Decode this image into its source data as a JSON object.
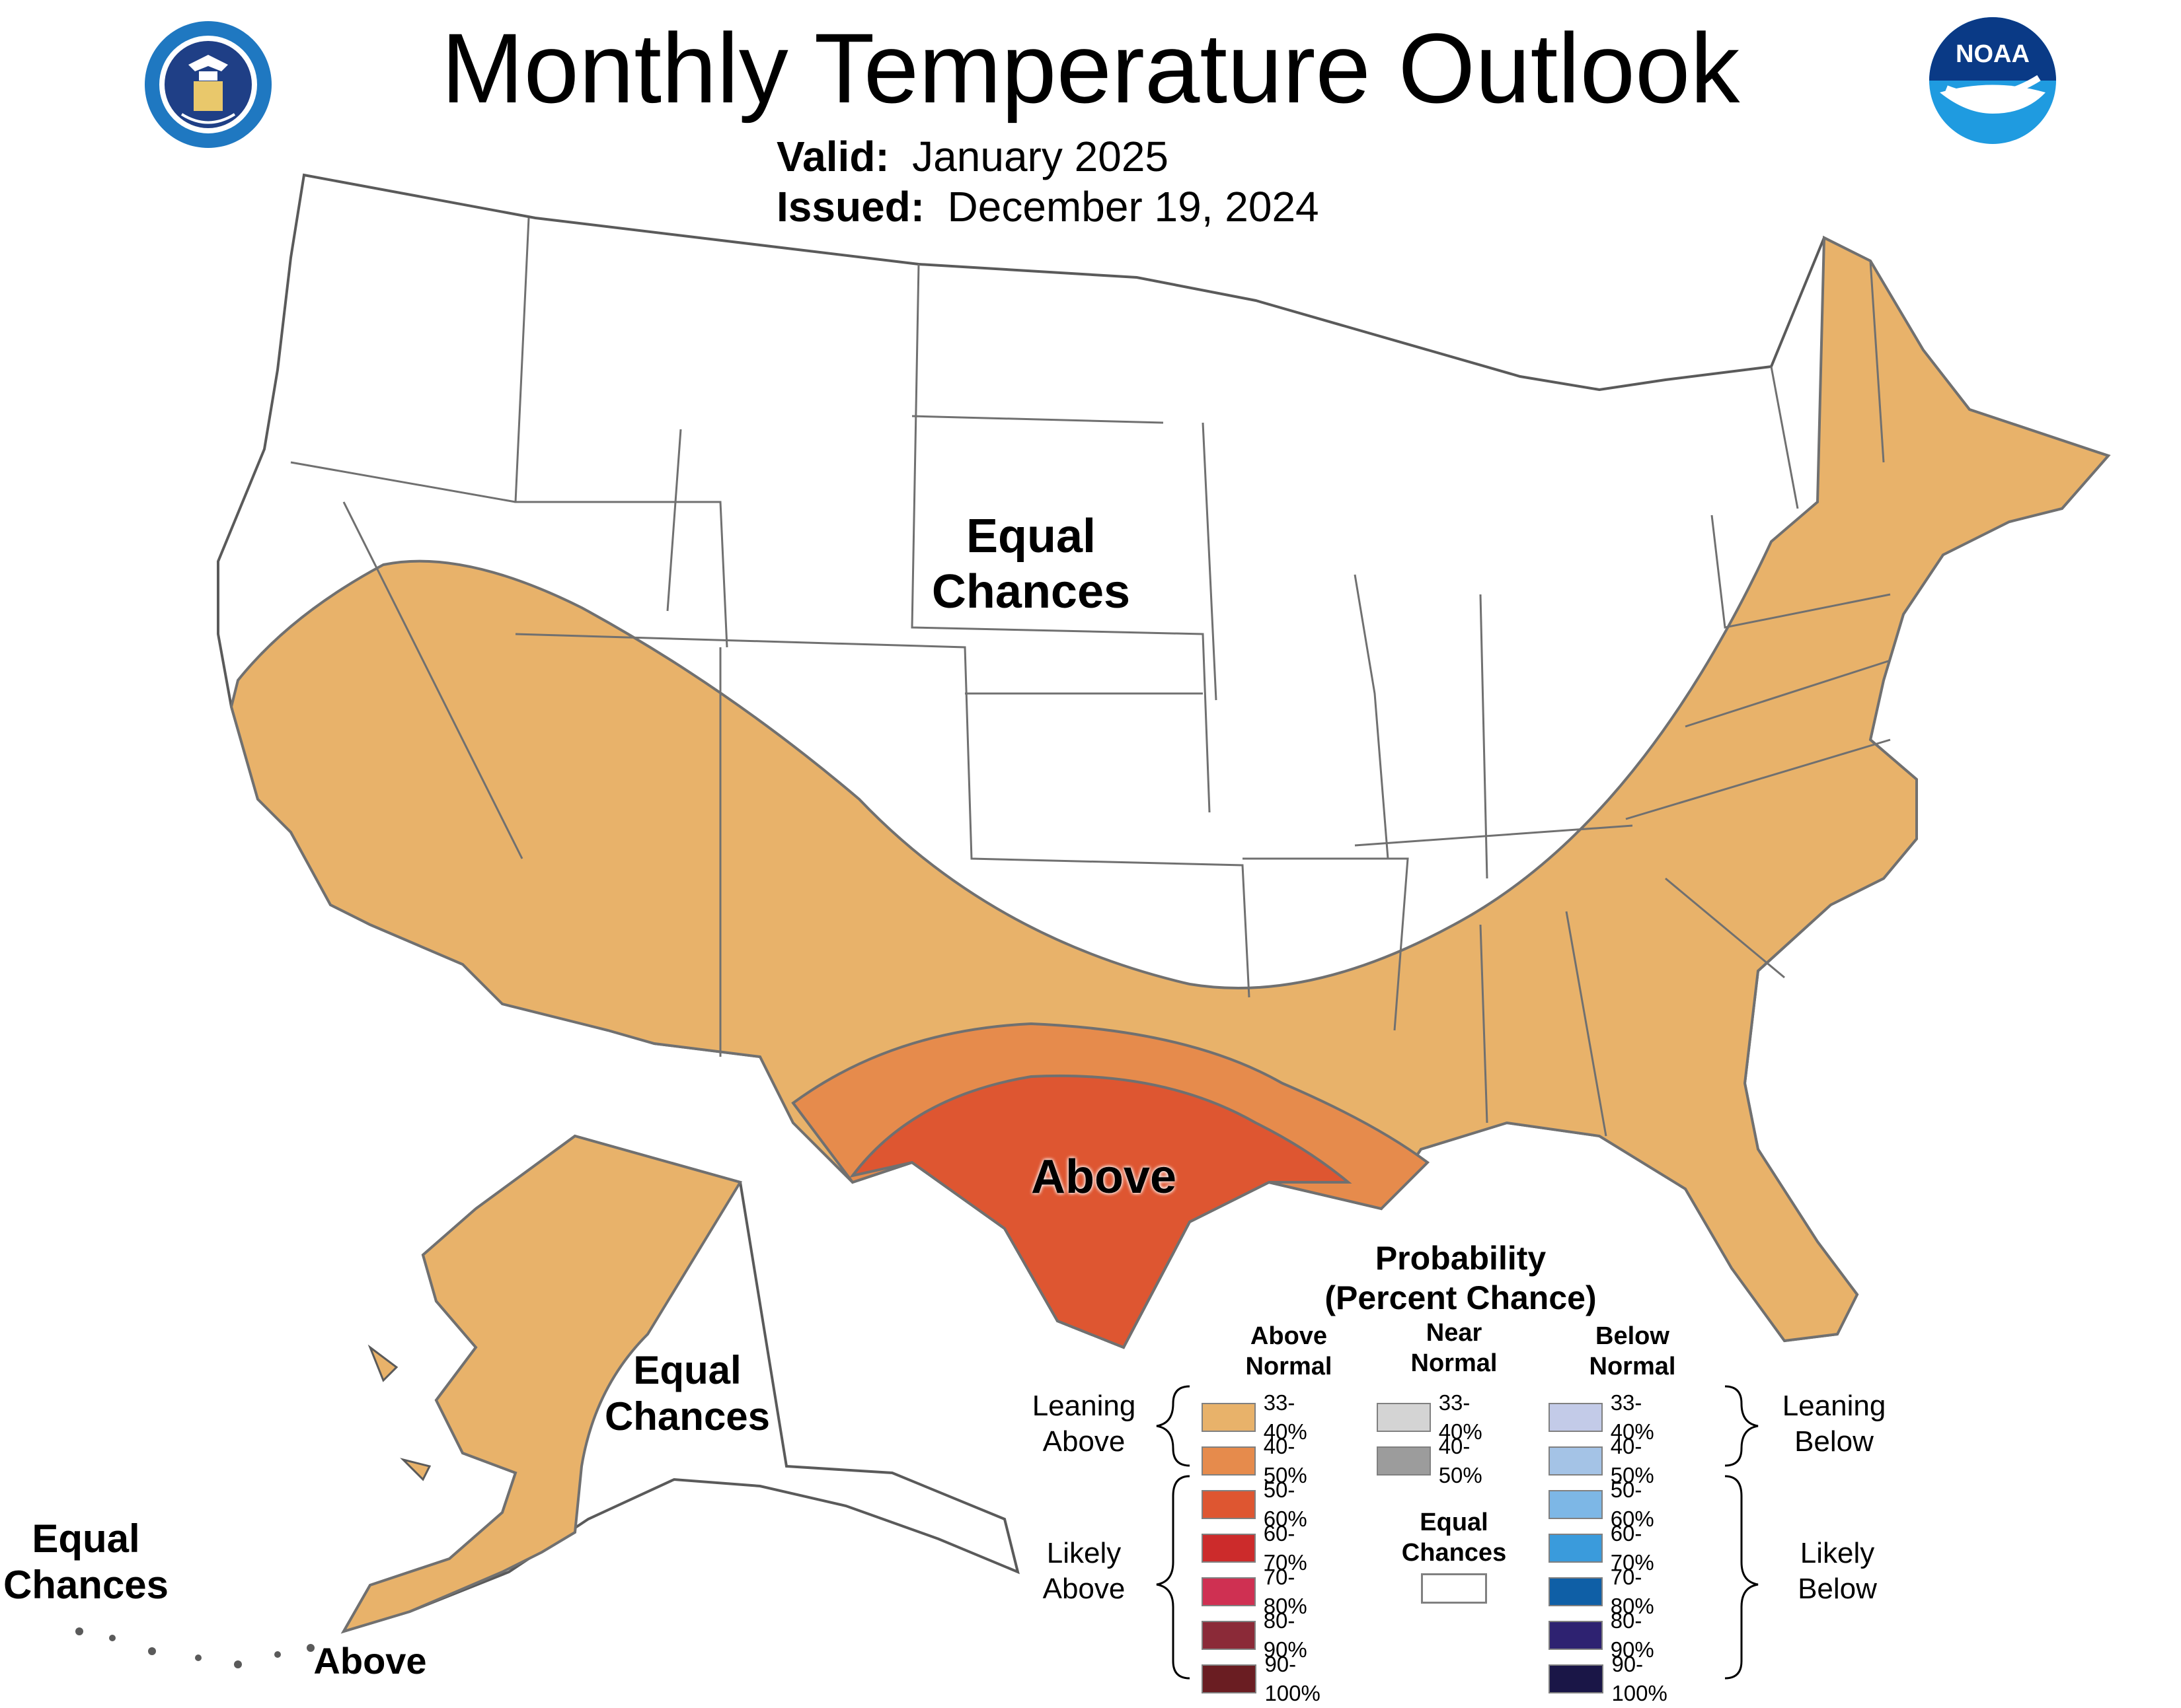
{
  "header": {
    "title": "Monthly Temperature Outlook",
    "valid_key": "Valid:",
    "valid_value": "January 2025",
    "issued_key": "Issued:",
    "issued_value": "December 19, 2024"
  },
  "logos": {
    "left": "department-of-commerce-seal",
    "right": "noaa-logo",
    "noaa_text": "NOAA"
  },
  "map": {
    "labels": {
      "conus_ec": [
        "Equal",
        "Chances"
      ],
      "conus_above": "Above",
      "alaska_ec": [
        "Equal",
        "Chances"
      ],
      "aleutian_ec": [
        "Equal",
        "Chances"
      ],
      "aleutian_above": "Above"
    },
    "regions": [
      {
        "name": "Western/Southern/Eastern US",
        "category": "Above Normal",
        "probability": "33-40%"
      },
      {
        "name": "Gulf Coast ring",
        "category": "Above Normal",
        "probability": "40-50%"
      },
      {
        "name": "Texas",
        "category": "Above Normal",
        "probability": "50-60%"
      },
      {
        "name": "Alaska Southwest",
        "category": "Above Normal",
        "probability": "33-40%"
      },
      {
        "name": "Northern Plains / Midwest / Northwest",
        "category": "Equal Chances",
        "probability": ""
      }
    ]
  },
  "legend": {
    "title_line1": "Probability",
    "title_line2": "(Percent Chance)",
    "col_above": [
      "Above",
      "Normal"
    ],
    "col_near": [
      "Near",
      "Normal"
    ],
    "col_below": [
      "Below",
      "Normal"
    ],
    "above": [
      {
        "label": "33-40%",
        "color": "#E8B26A"
      },
      {
        "label": "40-50%",
        "color": "#E68B4C"
      },
      {
        "label": "50-60%",
        "color": "#DE5631"
      },
      {
        "label": "60-70%",
        "color": "#CC2B2B"
      },
      {
        "label": "70-80%",
        "color": "#CF3052"
      },
      {
        "label": "80-90%",
        "color": "#8B2A38"
      },
      {
        "label": "90-100%",
        "color": "#6A1D22"
      }
    ],
    "near": [
      {
        "label": "33-40%",
        "color": "#D4D4D4"
      },
      {
        "label": "40-50%",
        "color": "#9C9C9C"
      }
    ],
    "below": [
      {
        "label": "33-40%",
        "color": "#C3CBE8"
      },
      {
        "label": "40-50%",
        "color": "#A4C3E6"
      },
      {
        "label": "50-60%",
        "color": "#7DB7E6"
      },
      {
        "label": "60-70%",
        "color": "#3A9BDC"
      },
      {
        "label": "70-80%",
        "color": "#0F5FA6"
      },
      {
        "label": "80-90%",
        "color": "#2E2271"
      },
      {
        "label": "90-100%",
        "color": "#1A1647"
      }
    ],
    "equal_chances": [
      "Equal",
      "Chances"
    ],
    "leaning_above": [
      "Leaning",
      "Above"
    ],
    "likely_above": [
      "Likely",
      "Above"
    ],
    "leaning_below": [
      "Leaning",
      "Below"
    ],
    "likely_below": [
      "Likely",
      "Below"
    ]
  }
}
